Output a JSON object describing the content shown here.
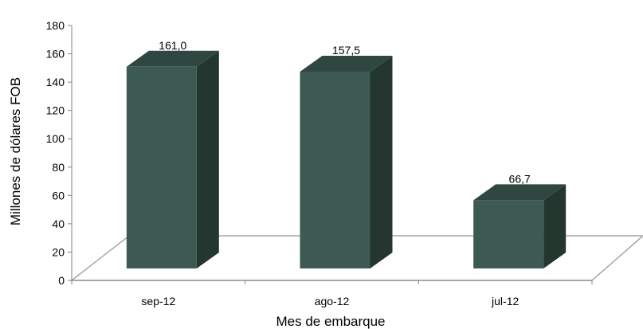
{
  "chart_data": {
    "type": "bar",
    "title": "",
    "xlabel": "Mes de embarque",
    "ylabel": "Millones  de dólares FOB",
    "categories": [
      "sep-12",
      "ago-12",
      "jul-12"
    ],
    "values": [
      161.0,
      157.5,
      66.7
    ],
    "data_labels": [
      "161,0",
      "157,5",
      "66,7"
    ],
    "y_ticks": [
      "0",
      "20",
      "40",
      "60",
      "80",
      "100",
      "120",
      "140",
      "160",
      "180"
    ],
    "ylim": [
      0,
      180
    ],
    "grid": false,
    "legend": "none",
    "bar_style": "3d",
    "colors": {
      "front": "#3d5a52",
      "side": "#24372f",
      "top": "#2f4740",
      "floor_line": "#a6a6a6"
    }
  }
}
